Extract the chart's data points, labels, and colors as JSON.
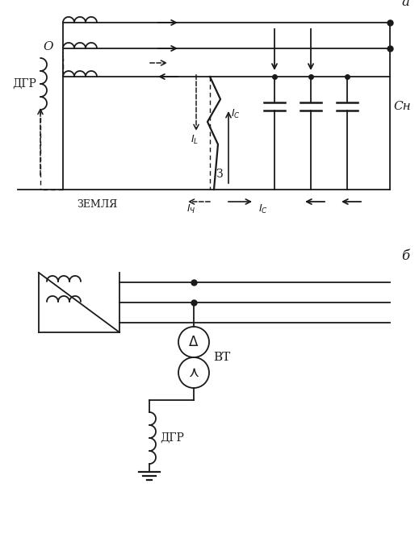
{
  "fig_width": 5.19,
  "fig_height": 6.62,
  "dpi": 100,
  "bg_color": "#ffffff",
  "line_color": "#1a1a1a",
  "label_a": "а",
  "label_b": "б",
  "dgr_label_a": "ДГР",
  "dgr_label_b": "ДГР",
  "zemlya_label": "ЗЕМЛЯ",
  "vt_label": "ВТ",
  "cn_label": "Сн",
  "o_label": "О",
  "Z_label": "З"
}
